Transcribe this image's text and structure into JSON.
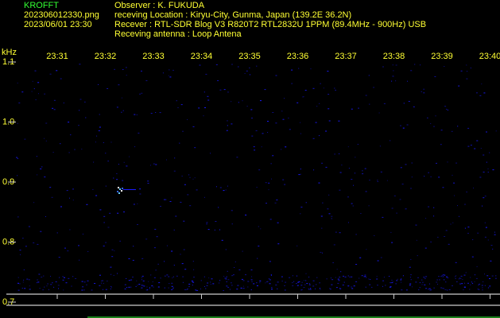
{
  "header": {
    "app": "KROFFT",
    "file": "202306012330.png",
    "datetime": "2023/06/01 23:30",
    "observer": "Observer : K. FUKUDA",
    "location": "receving Location : Kiryu-City, Gunma, Japan (139.2E 36.2N)",
    "receiver": "Recever : RTL-SDR Blog V3 R820T2 RTL2832U 1PPM (89.4MHz - 900Hz) USB",
    "antenna": "Receving antenna : Loop Antena"
  },
  "chart_data": {
    "type": "spectrogram",
    "y_label": "kHz",
    "categories": [
      "23:31",
      "23:32",
      "23:33",
      "23:34",
      "23:35",
      "23:36",
      "23:37",
      "23:38",
      "23:39",
      "23:40"
    ],
    "ylim": [
      0.7,
      1.1
    ],
    "yticks": [
      0.7,
      0.8,
      0.9,
      {
        "value": 1,
        "label": "1.0"
      },
      1.1
    ],
    "color": "#1a1aff"
  }
}
